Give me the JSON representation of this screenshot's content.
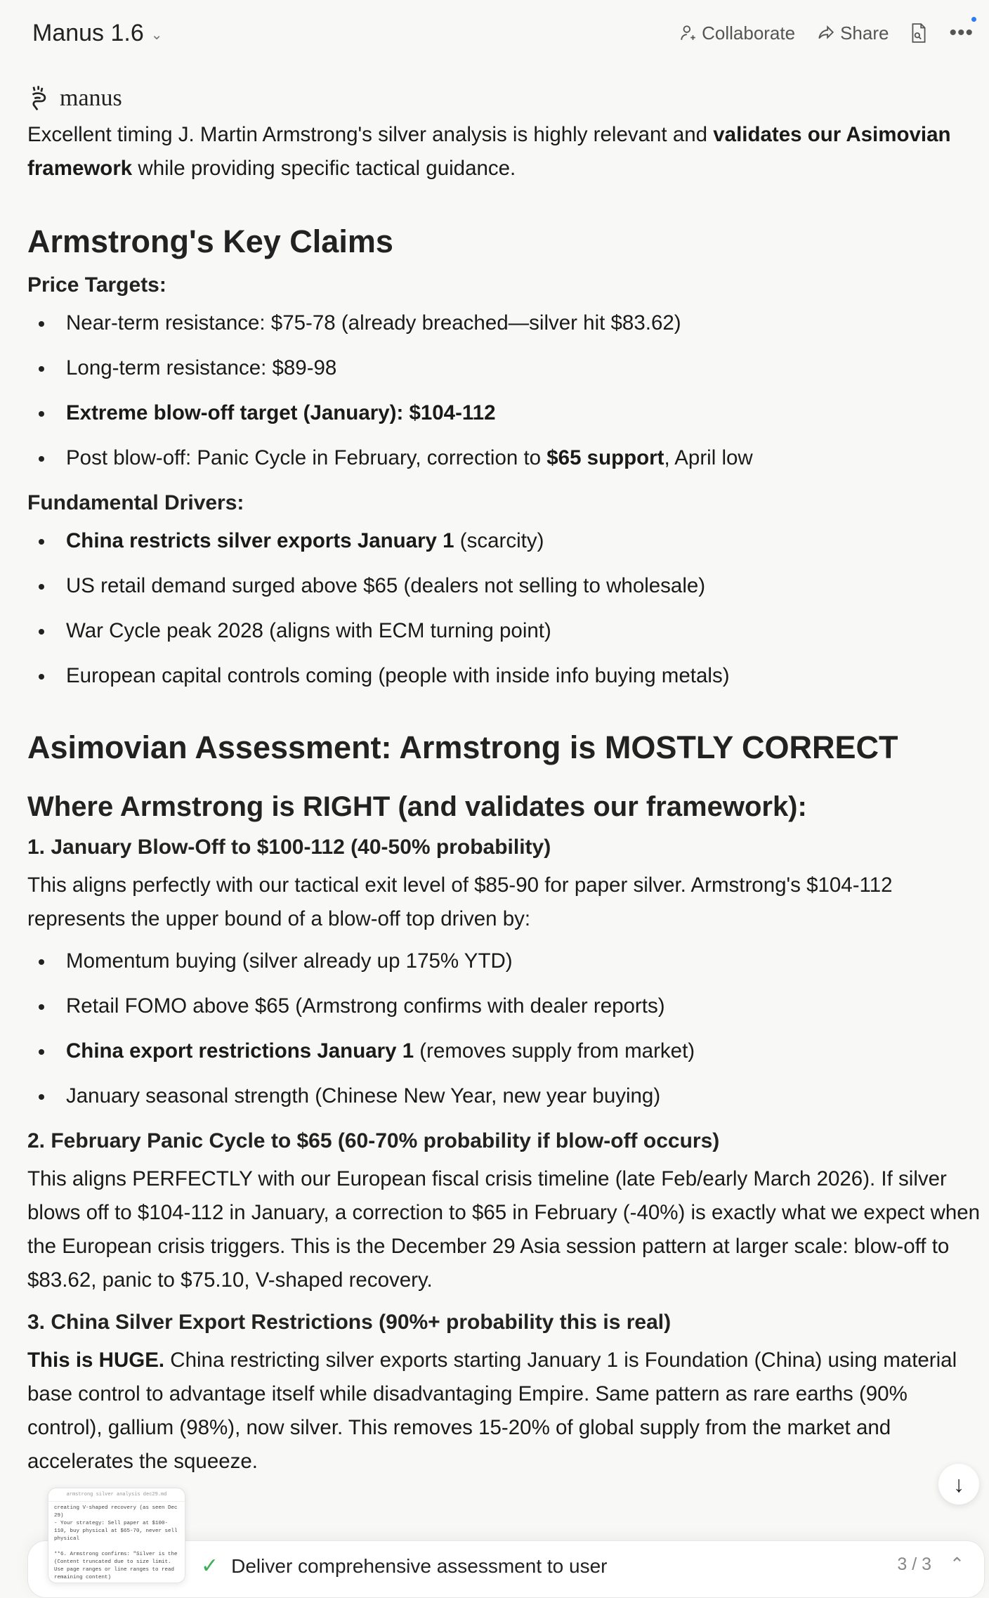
{
  "header": {
    "title": "Manus 1.6",
    "collaborate": "Collaborate",
    "share": "Share",
    "accent_dot_color": "#2f7cf6"
  },
  "logo_text": "manus",
  "intro": [
    {
      "text": "Excellent timing J. Martin Armstrong's silver analysis is highly relevant and "
    },
    {
      "text": "validates our Asimovian framework",
      "bold": true
    },
    {
      "text": " while providing specific tactical guidance."
    }
  ],
  "section1": {
    "heading": "Armstrong's Key Claims",
    "price_targets_label": "Price Targets:",
    "price_targets": [
      [
        {
          "text": "Near-term resistance: $75-78 (already breached—silver hit $83.62)"
        }
      ],
      [
        {
          "text": "Long-term resistance: $89-98"
        }
      ],
      [
        {
          "text": "Extreme blow-off target (January): $104-112",
          "bold": true
        }
      ],
      [
        {
          "text": "Post blow-off: Panic Cycle in February, correction to "
        },
        {
          "text": "$65 support",
          "bold": true
        },
        {
          "text": ", April low"
        }
      ]
    ],
    "drivers_label": "Fundamental Drivers:",
    "drivers": [
      [
        {
          "text": "China restricts silver exports January 1",
          "bold": true
        },
        {
          "text": " (scarcity)"
        }
      ],
      [
        {
          "text": "US retail demand surged above $65 (dealers not selling to wholesale)"
        }
      ],
      [
        {
          "text": "War Cycle peak 2028 (aligns with ECM turning point)"
        }
      ],
      [
        {
          "text": "European capital controls coming (people with inside info buying metals)"
        }
      ]
    ]
  },
  "section2": {
    "heading": "Asimovian Assessment: Armstrong is MOSTLY CORRECT",
    "subheading": "Where Armstrong is RIGHT (and validates our framework):",
    "point1": {
      "title": "1. January Blow-Off to $100-112 (40-50% probability)",
      "para": [
        {
          "text": "This aligns perfectly with our tactical exit level of $85-90 for paper silver. Armstrong's $104-112 represents the upper bound of a blow-off top driven by:"
        }
      ],
      "bullets": [
        [
          {
            "text": "Momentum buying (silver already up 175% YTD)"
          }
        ],
        [
          {
            "text": "Retail FOMO above $65 (Armstrong confirms with dealer reports)"
          }
        ],
        [
          {
            "text": "China export restrictions January 1",
            "bold": true
          },
          {
            "text": " (removes supply from market)"
          }
        ],
        [
          {
            "text": "January seasonal strength (Chinese New Year, new year buying)"
          }
        ]
      ]
    },
    "point2": {
      "title": "2. February Panic Cycle to $65 (60-70% probability if blow-off occurs)",
      "para": [
        {
          "text": "This aligns PERFECTLY with our European fiscal crisis timeline (late Feb/early March 2026). If silver blows off to $104-112 in January, a correction to $65 in February (-40%) is exactly what we expect when the European crisis triggers. This is the December 29 Asia session pattern at larger scale: blow-off to $83.62, panic to $75.10, V-shaped recovery."
        }
      ]
    },
    "point3": {
      "title": "3. China Silver Export Restrictions (90%+ probability this is real)",
      "para": [
        {
          "text": "This is HUGE.",
          "bold": true
        },
        {
          "text": " China restricting silver exports starting January 1 is Foundation (China) using material base control to advantage itself while disadvantaging Empire. Same pattern as rare earths (90% control), gallium (98%), now silver. This removes 15-20% of global supply from the market and accelerates the squeeze."
        }
      ]
    }
  },
  "attachment_preview": {
    "filename": "armstrong silver analysis dec29.md",
    "content": "creating V-shaped recovery (as seen Dec 29)\n- Your strategy: Sell paper at $100-110, buy physical at $65-70, never sell physical\n\n**6. Armstrong confirms: \"Silver is the\n(Content truncated due to size limit. Use page ranges or line ranges to read remaining content)"
  },
  "task_bar": {
    "task": "Deliver comprehensive assessment to user",
    "progress": "3 / 3",
    "status_color": "#3fae5a"
  }
}
